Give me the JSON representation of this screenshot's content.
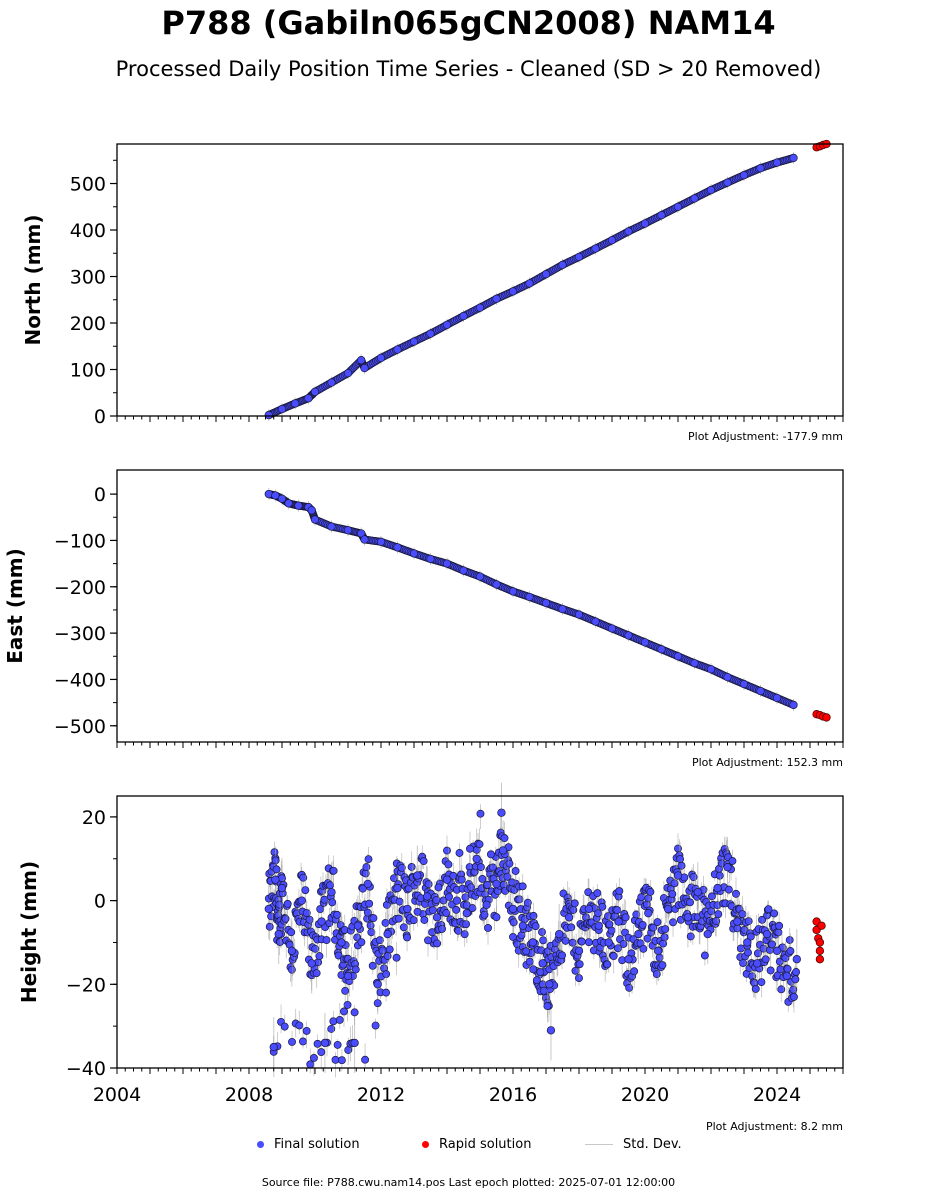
{
  "title": "P788 (Gabiln065gCN2008) NAM14",
  "subtitle": "Processed Daily Position Time Series - Cleaned (SD > 20 Removed)",
  "legend": {
    "final": "Final solution",
    "rapid": "Rapid solution",
    "sd": "Std. Dev."
  },
  "footer": "Source file: P788.cwu.nam14.pos  Last epoch plotted: 2025-07-01 12:00:00",
  "colors": {
    "final": "#4a4cff",
    "final_edge": "#1a1a3a",
    "rapid": "#ff0000",
    "std_dev": "#c8c8c8"
  },
  "chart_data": [
    {
      "type": "scatter",
      "ylabel": "North (mm)",
      "adjustment": "Plot Adjustment: -177.9 mm",
      "xlim": [
        2004,
        2026
      ],
      "ylim": [
        0,
        585
      ],
      "yticks": [
        0,
        100,
        200,
        300,
        400,
        500
      ],
      "ytick_labels": [
        "0",
        "100",
        "200",
        "300",
        "400",
        "500"
      ],
      "series": [
        {
          "name": "Final solution",
          "x": [
            2008.6,
            2009.0,
            2009.4,
            2009.8,
            2010.0,
            2010.5,
            2011.0,
            2011.4,
            2011.5,
            2012.0,
            2012.5,
            2013.0,
            2013.5,
            2014.0,
            2014.5,
            2015.0,
            2015.5,
            2016.0,
            2016.5,
            2017.0,
            2017.5,
            2018.0,
            2018.5,
            2019.0,
            2019.5,
            2020.0,
            2020.5,
            2021.0,
            2021.5,
            2022.0,
            2022.5,
            2023.0,
            2023.5,
            2024.0,
            2024.5
          ],
          "y": [
            2,
            15,
            27,
            38,
            52,
            72,
            92,
            120,
            103,
            125,
            143,
            160,
            177,
            196,
            215,
            233,
            252,
            268,
            285,
            305,
            325,
            342,
            360,
            378,
            397,
            414,
            432,
            450,
            468,
            486,
            502,
            518,
            533,
            545,
            555
          ]
        },
        {
          "name": "Rapid solution",
          "x": [
            2025.2,
            2025.3,
            2025.4,
            2025.5
          ],
          "y": [
            578,
            580,
            583,
            585
          ]
        }
      ]
    },
    {
      "type": "scatter",
      "ylabel": "East (mm)",
      "adjustment": "Plot Adjustment: 152.3 mm",
      "xlim": [
        2004,
        2026
      ],
      "ylim": [
        -535,
        52
      ],
      "yticks": [
        0,
        -100,
        -200,
        -300,
        -400,
        -500
      ],
      "ytick_labels": [
        "0",
        "−100",
        "−200",
        "−300",
        "−400",
        "−500"
      ],
      "series": [
        {
          "name": "Final solution",
          "x": [
            2008.6,
            2008.8,
            2009.0,
            2009.2,
            2009.5,
            2009.8,
            2009.9,
            2010.0,
            2010.5,
            2011.0,
            2011.4,
            2011.5,
            2012.0,
            2012.5,
            2013.0,
            2013.5,
            2014.0,
            2014.5,
            2015.0,
            2015.5,
            2016.0,
            2016.5,
            2017.0,
            2017.5,
            2018.0,
            2018.5,
            2019.0,
            2019.5,
            2020.0,
            2020.5,
            2021.0,
            2021.5,
            2022.0,
            2022.5,
            2023.0,
            2023.5,
            2024.0,
            2024.5
          ],
          "y": [
            0,
            -3,
            -10,
            -20,
            -25,
            -28,
            -35,
            -55,
            -70,
            -78,
            -85,
            -98,
            -103,
            -115,
            -128,
            -140,
            -150,
            -165,
            -178,
            -195,
            -210,
            -222,
            -235,
            -248,
            -260,
            -275,
            -290,
            -305,
            -320,
            -335,
            -350,
            -365,
            -378,
            -395,
            -410,
            -425,
            -440,
            -455
          ]
        },
        {
          "name": "Rapid solution",
          "x": [
            2025.2,
            2025.3,
            2025.4,
            2025.5
          ],
          "y": [
            -475,
            -477,
            -480,
            -482
          ]
        }
      ]
    },
    {
      "type": "scatter",
      "ylabel": "Height (mm)",
      "adjustment": "Plot Adjustment: 8.2 mm",
      "xlim": [
        2004,
        2026
      ],
      "ylim": [
        -40,
        25
      ],
      "yticks": [
        20,
        0,
        -20,
        -40
      ],
      "ytick_labels": [
        "20",
        "0",
        "−20",
        "−40"
      ],
      "xticks": [
        2004,
        2008,
        2012,
        2016,
        2020,
        2024
      ],
      "xtick_labels": [
        "2004",
        "2008",
        "2012",
        "2016",
        "2020",
        "2024"
      ],
      "series": [
        {
          "name": "Final solution",
          "x": [
            2008.6,
            2008.8,
            2008.9,
            2009.0,
            2009.3,
            2009.6,
            2009.9,
            2010.2,
            2010.5,
            2010.8,
            2011.0,
            2011.3,
            2011.6,
            2011.9,
            2012.2,
            2012.5,
            2012.8,
            2013.1,
            2013.4,
            2013.7,
            2014.0,
            2014.3,
            2014.6,
            2014.9,
            2015.2,
            2015.5,
            2015.7,
            2016.0,
            2016.3,
            2016.6,
            2016.9,
            2017.1,
            2017.4,
            2017.7,
            2018.0,
            2018.3,
            2018.6,
            2018.9,
            2019.2,
            2019.5,
            2019.8,
            2020.1,
            2020.4,
            2020.7,
            2021.0,
            2021.3,
            2021.6,
            2021.9,
            2022.2,
            2022.5,
            2022.8,
            2023.1,
            2023.4,
            2023.7,
            2024.0,
            2024.3,
            2024.6,
            2008.75,
            2010.3,
            2011.2,
            2015.65,
            2017.15
          ],
          "y": [
            -2,
            5,
            -8,
            3,
            -12,
            0,
            -15,
            -5,
            2,
            -10,
            -18,
            -6,
            4,
            -20,
            -8,
            3,
            -2,
            6,
            1,
            -4,
            5,
            0,
            -3,
            10,
            -1,
            4,
            12,
            -2,
            -6,
            -10,
            -15,
            -20,
            -8,
            -4,
            -12,
            -2,
            -6,
            -10,
            -5,
            -14,
            -8,
            -3,
            -12,
            -2,
            6,
            -4,
            2,
            -8,
            3,
            8,
            -5,
            -10,
            -15,
            -8,
            -12,
            -18,
            -14,
            -35,
            -34,
            -34,
            21,
            -31
          ]
        },
        {
          "name": "Rapid solution",
          "x": [
            2025.2,
            2025.2,
            2025.25,
            2025.3,
            2025.3,
            2025.3,
            2025.35
          ],
          "y": [
            -5,
            -7,
            -9,
            -10,
            -12,
            -14,
            -6
          ]
        }
      ]
    }
  ]
}
